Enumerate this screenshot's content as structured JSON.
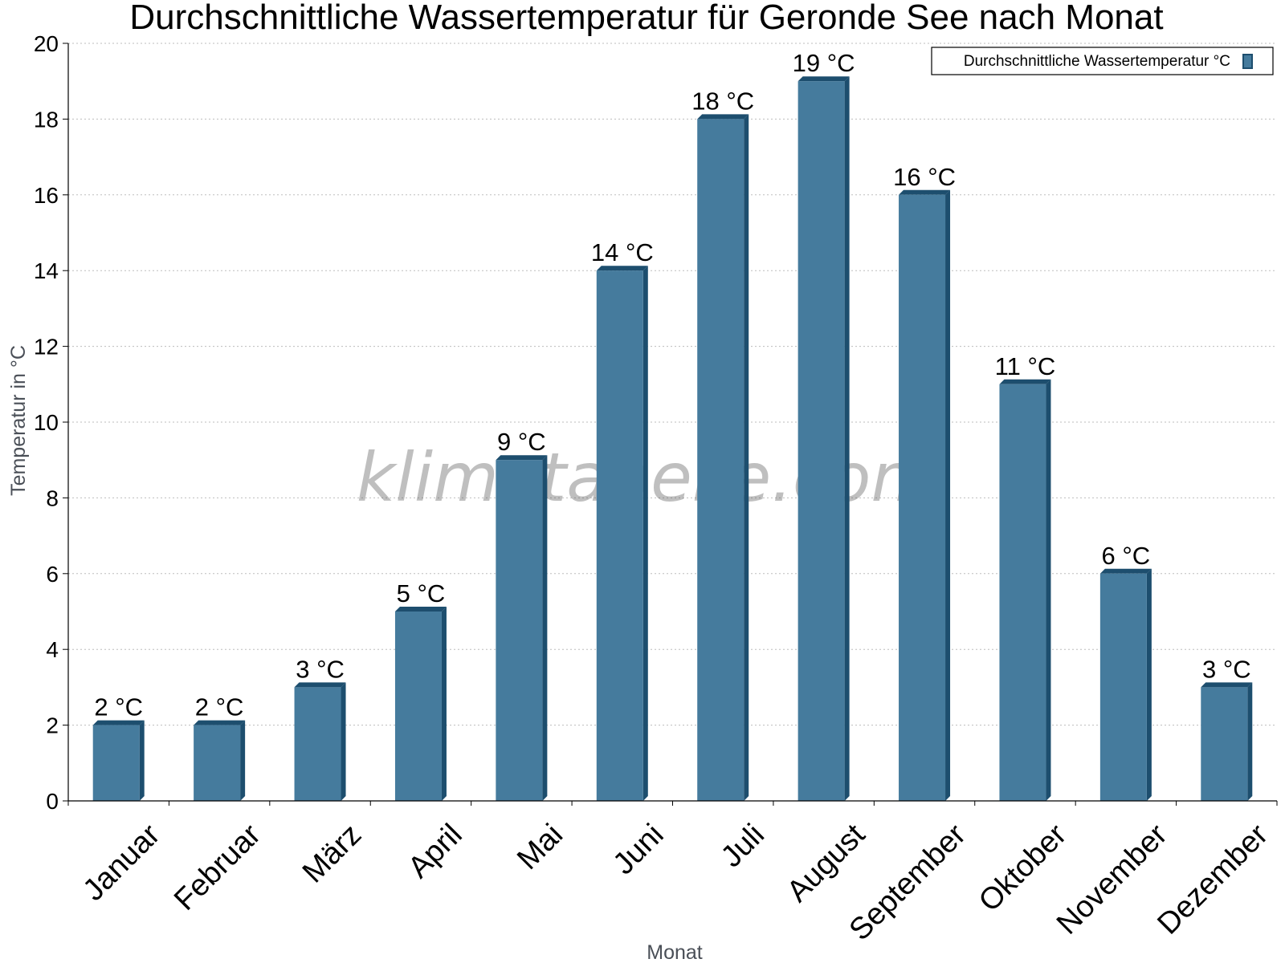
{
  "chart_data": {
    "type": "bar",
    "title": "Durchschnittliche Wassertemperatur für Geronde See nach Monat",
    "xlabel": "Monat",
    "ylabel": "Temperatur in °C",
    "categories": [
      "Januar",
      "Februar",
      "März",
      "April",
      "Mai",
      "Juni",
      "Juli",
      "August",
      "September",
      "Oktober",
      "November",
      "Dezember"
    ],
    "series": [
      {
        "name": "Durchschnittliche Wassertemperatur °C",
        "values": [
          2,
          2,
          3,
          5,
          9,
          14,
          18,
          19,
          16,
          11,
          6,
          3
        ],
        "labels": [
          "2 °C",
          "2 °C",
          "3 °C",
          "5 °C",
          "9 °C",
          "14 °C",
          "18 °C",
          "19 °C",
          "16 °C",
          "11 °C",
          "6 °C",
          "3 °C"
        ],
        "color": "#457b9d",
        "shade_color": "#1d4e6e"
      }
    ],
    "ylim": [
      0,
      20
    ],
    "yticks": [
      0,
      2,
      4,
      6,
      8,
      10,
      12,
      14,
      16,
      18,
      20
    ],
    "grid": true,
    "legend_position": "top-right",
    "watermark": "klimatabelle.com"
  }
}
